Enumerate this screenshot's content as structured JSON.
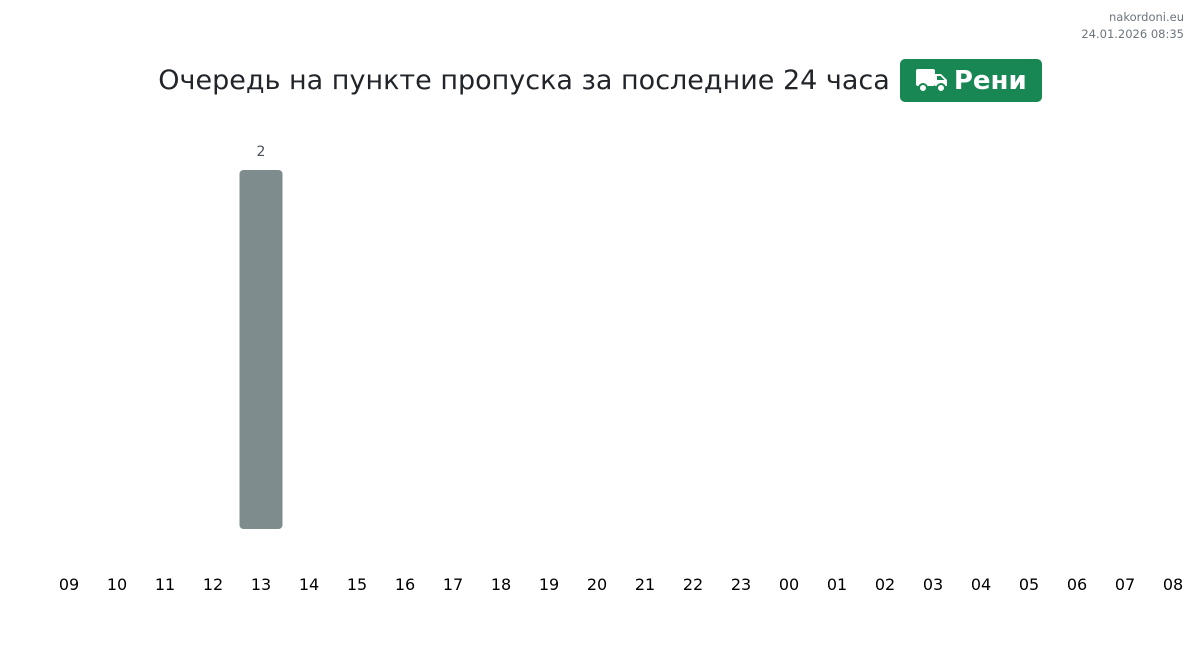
{
  "site": "nakordoni.eu",
  "timestamp": "24.01.2026 08:35",
  "title": "Очередь на пункте пропуска за последние 24 часа",
  "checkpoint": {
    "label": "Рени",
    "icon": "truck-icon",
    "color": "#198754"
  },
  "chart_data": {
    "type": "bar",
    "categories": [
      "09",
      "10",
      "11",
      "12",
      "13",
      "14",
      "15",
      "16",
      "17",
      "18",
      "19",
      "20",
      "21",
      "22",
      "23",
      "00",
      "01",
      "02",
      "03",
      "04",
      "05",
      "06",
      "07",
      "08"
    ],
    "values": [
      0,
      0,
      0,
      0,
      2,
      0,
      0,
      0,
      0,
      0,
      0,
      0,
      0,
      0,
      0,
      0,
      0,
      0,
      0,
      0,
      0,
      0,
      0,
      0
    ],
    "data_labels": [
      "",
      "",
      "",
      "",
      "2",
      "",
      "",
      "",
      "",
      "",
      "",
      "",
      "",
      "",
      "",
      "",
      "",
      "",
      "",
      "",
      "",
      "",
      "",
      ""
    ],
    "ylim": [
      0,
      2
    ],
    "grid": false,
    "bar_color": "#7f8c8d"
  }
}
